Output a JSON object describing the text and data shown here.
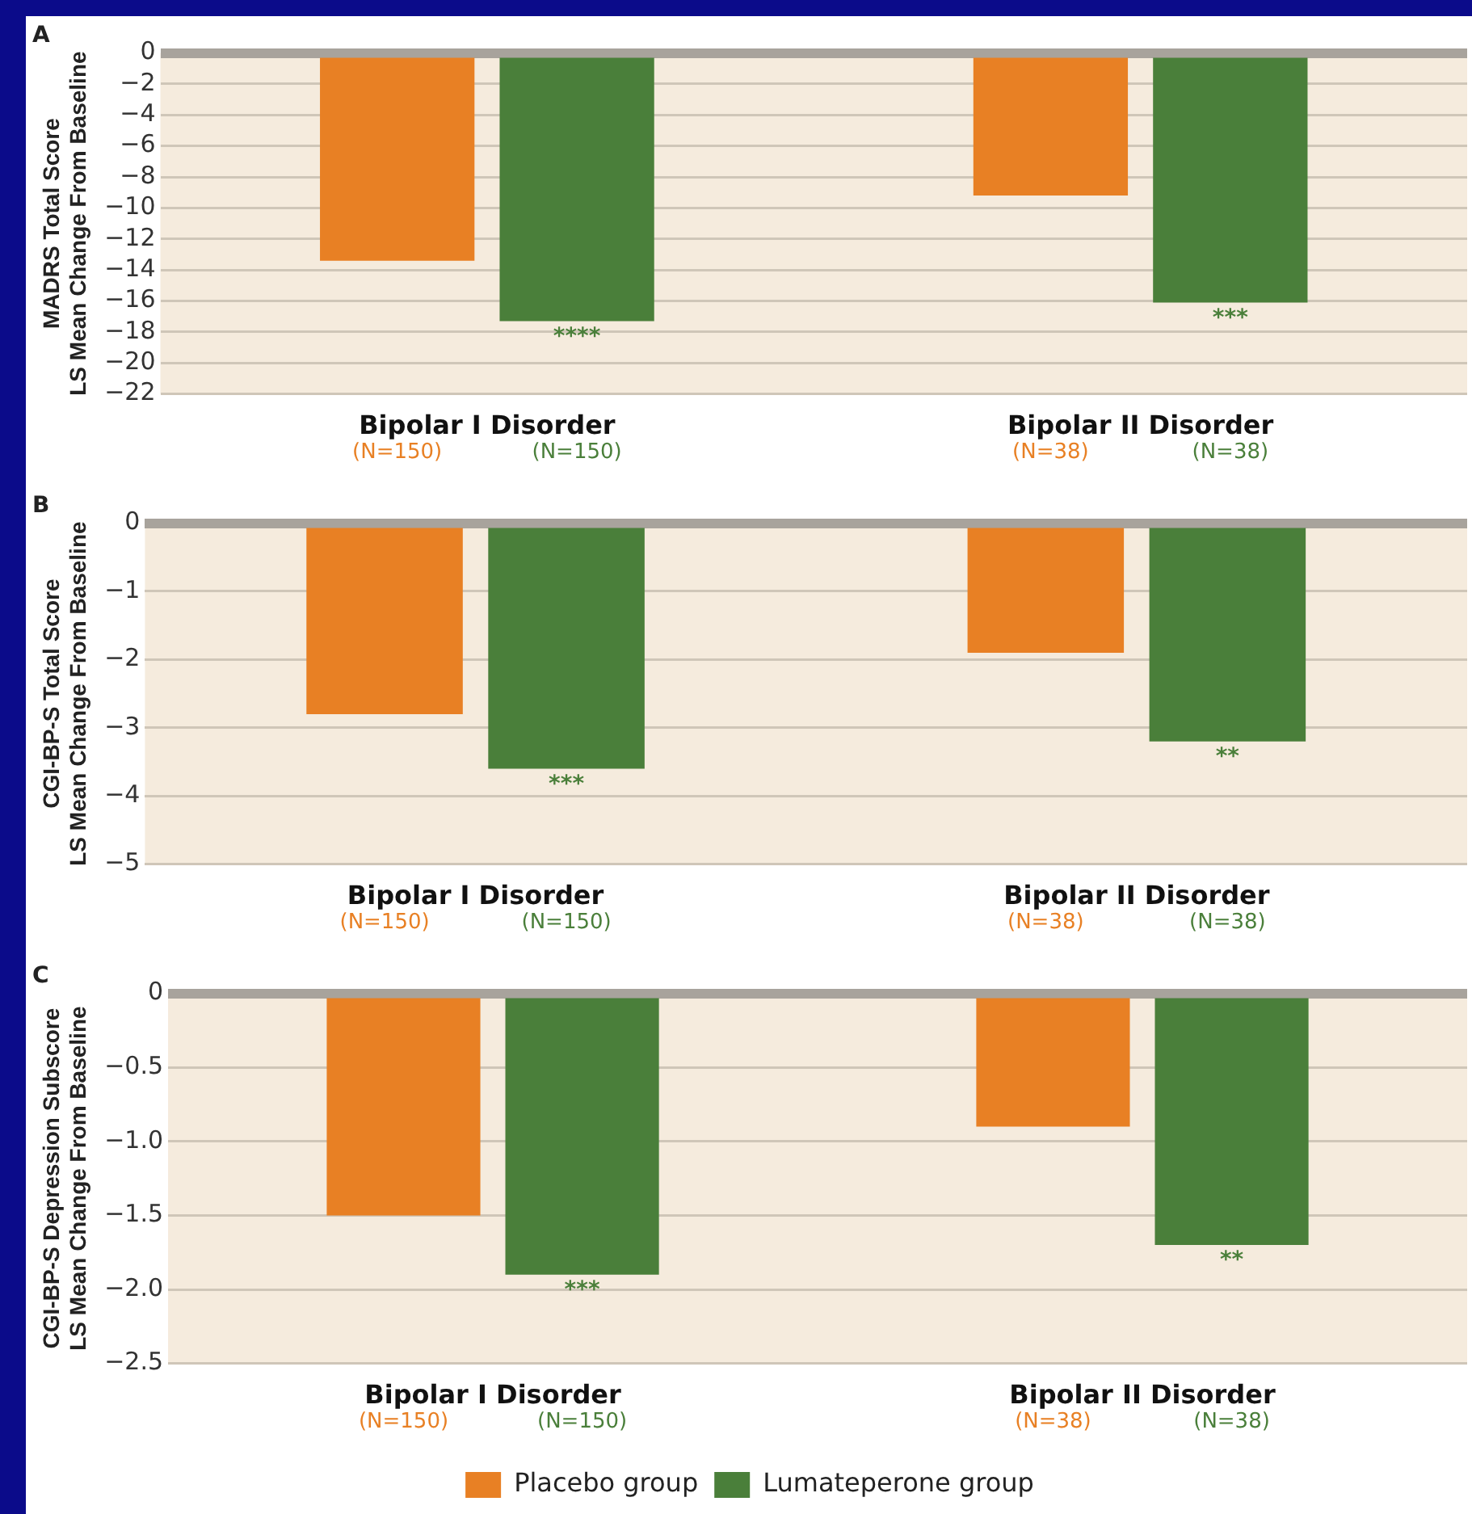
{
  "chart_data": [
    {
      "type": "bar",
      "title": "A",
      "ylabel": "MADRS Total Score\nLS Mean Change From Baseline",
      "categories": [
        "Bipolar I Disorder",
        "Bipolar II Disorder"
      ],
      "series": [
        {
          "color": "#e88024",
          "values": [
            -13.4,
            -9.2
          ]
        },
        {
          "color": "#4a7f3a",
          "values": [
            -17.3,
            -16.1
          ]
        }
      ],
      "ylim": [
        -22,
        0
      ],
      "yticks": [
        {
          "value": 0,
          "label": "0"
        },
        {
          "value": -2,
          "label": "−2"
        },
        {
          "value": -4,
          "label": "−4"
        },
        {
          "value": -6,
          "label": "−6"
        },
        {
          "value": -8,
          "label": "−8"
        },
        {
          "value": -10,
          "label": "−10"
        },
        {
          "value": -12,
          "label": "−12"
        },
        {
          "value": -14,
          "label": "−14"
        },
        {
          "value": -16,
          "label": "−16"
        },
        {
          "value": -18,
          "label": "−18"
        },
        {
          "value": -20,
          "label": "−20"
        },
        {
          "value": -22,
          "label": "−22"
        }
      ],
      "grid": "y",
      "legend": false,
      "annotations": [
        "(N=150)",
        "(N=150)",
        "(N=38)",
        "(N=38)",
        "****",
        "***"
      ]
    },
    {
      "type": "bar",
      "title": "B",
      "ylabel": "CGI-BP-S Total Score\nLS Mean Change From Baseline",
      "categories": [
        "Bipolar I Disorder",
        "Bipolar II Disorder"
      ],
      "series": [
        {
          "color": "#e88024",
          "values": [
            -2.8,
            -1.9
          ]
        },
        {
          "color": "#4a7f3a",
          "values": [
            -3.6,
            -3.2
          ]
        }
      ],
      "ylim": [
        -5,
        0
      ],
      "yticks": [
        {
          "value": 0,
          "label": "0"
        },
        {
          "value": -1,
          "label": "−1"
        },
        {
          "value": -2,
          "label": "−2"
        },
        {
          "value": -3,
          "label": "−3"
        },
        {
          "value": -4,
          "label": "−4"
        },
        {
          "value": -5,
          "label": "−5"
        }
      ],
      "grid": "y",
      "legend": false,
      "annotations": [
        "(N=150)",
        "(N=150)",
        "(N=38)",
        "(N=38)",
        "***",
        "**"
      ]
    },
    {
      "type": "bar",
      "title": "C",
      "ylabel": "CGI-BP-S Depression Subscore\nLS Mean Change From Baseline",
      "categories": [
        "Bipolar I Disorder",
        "Bipolar II Disorder"
      ],
      "series": [
        {
          "name": "Placebo group",
          "color": "#e88024",
          "values": [
            -1.5,
            -0.9
          ]
        },
        {
          "name": "Lumateperone group",
          "color": "#4a7f3a",
          "values": [
            -1.9,
            -1.7
          ]
        }
      ],
      "ylim": [
        -2.5,
        0
      ],
      "yticks": [
        {
          "value": 0,
          "label": "0"
        },
        {
          "value": -0.5,
          "label": "−0.5"
        },
        {
          "value": -1,
          "label": "−1.0"
        },
        {
          "value": -1.5,
          "label": "−1.5"
        },
        {
          "value": -2,
          "label": "−2.0"
        },
        {
          "value": -2.5,
          "label": "−2.5"
        }
      ],
      "grid": "y",
      "legend": "bottom",
      "annotations": [
        "(N=150)",
        "(N=150)",
        "(N=38)",
        "(N=38)",
        "***",
        "**"
      ]
    }
  ]
}
